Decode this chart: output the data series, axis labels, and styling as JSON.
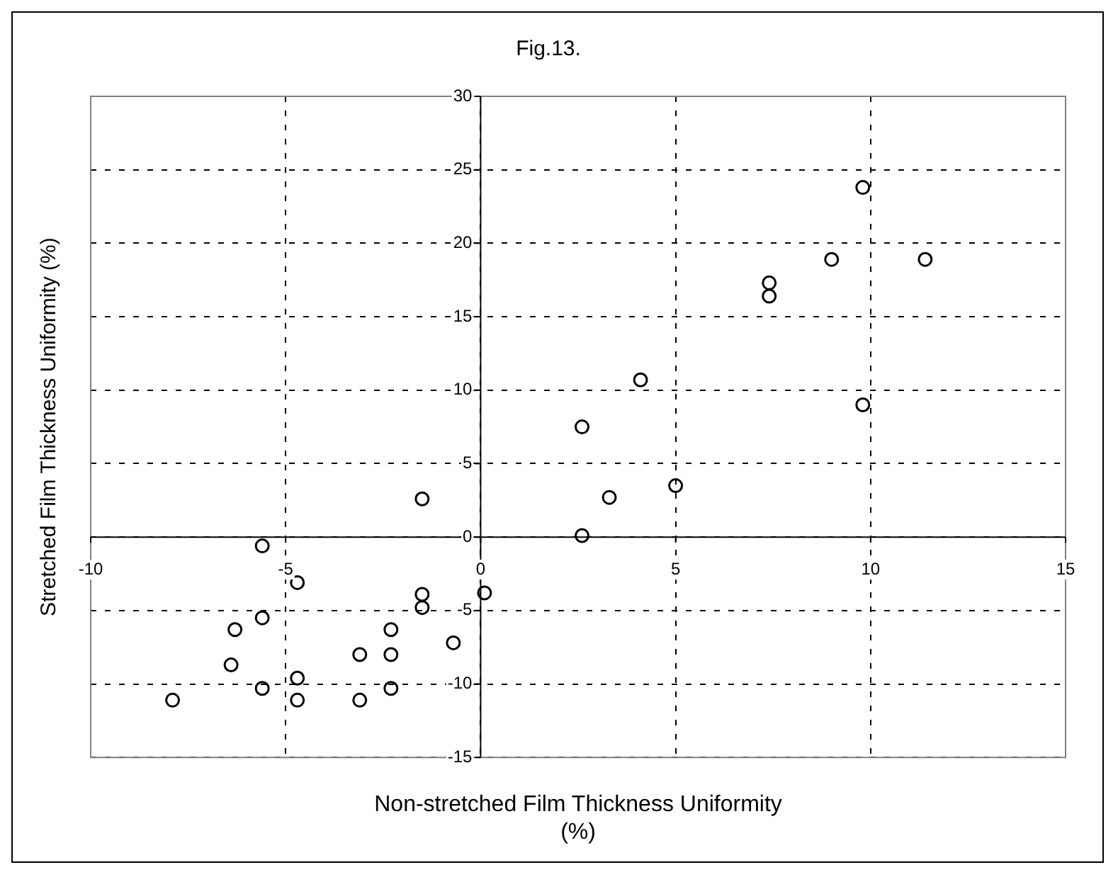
{
  "chart_data": {
    "type": "scatter",
    "title": "Fig.13.",
    "xlabel": "Non-stretched Film Thickness Uniformity\n(%)",
    "ylabel": "Stretched Film Thickness Uniformity (%)",
    "x": [
      -5.6,
      -4.7,
      -1.5,
      -1.5,
      0.1,
      -5.6,
      -6.3,
      -2.3,
      -0.7,
      -3.1,
      -2.3,
      -6.4,
      -4.7,
      -5.6,
      -2.3,
      -7.9,
      -4.7,
      -3.1,
      -1.5,
      2.6,
      3.3,
      5.0,
      2.6,
      9.8,
      4.1,
      7.4,
      7.4,
      9.0,
      11.4,
      9.8
    ],
    "values": [
      -0.6,
      -3.1,
      -3.9,
      -4.8,
      -3.8,
      -5.5,
      -6.3,
      -6.3,
      -7.2,
      -8.0,
      -8.0,
      -8.7,
      -9.6,
      -10.3,
      -10.3,
      -11.1,
      -11.1,
      -11.1,
      2.6,
      0.1,
      2.7,
      3.5,
      7.5,
      9.0,
      10.7,
      16.4,
      17.3,
      18.9,
      18.9,
      23.8
    ],
    "color": "#000000",
    "marker": "circle",
    "grid": true,
    "xlim": [
      -10,
      15
    ],
    "xticks": [
      -10,
      -5,
      0,
      5,
      10,
      15
    ],
    "ylim": [
      -15,
      30
    ],
    "yticks": [
      -15,
      -10,
      -5,
      0,
      5,
      10,
      15,
      20,
      25,
      30
    ]
  }
}
